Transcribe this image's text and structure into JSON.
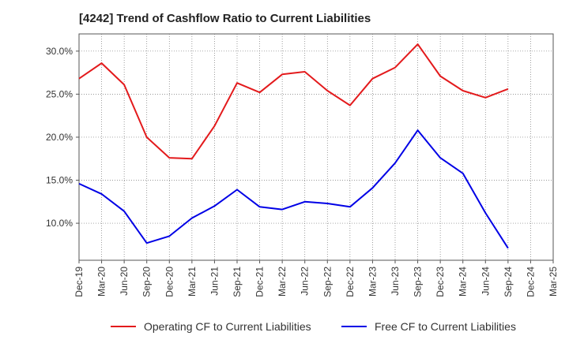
{
  "chart_data": {
    "type": "line",
    "title": "[4242]  Trend of Cashflow Ratio to Current Liabilities",
    "xlabel": "",
    "ylabel": "",
    "categories": [
      "Dec-19",
      "Mar-20",
      "Jun-20",
      "Sep-20",
      "Dec-20",
      "Mar-21",
      "Jun-21",
      "Sep-21",
      "Dec-21",
      "Mar-22",
      "Jun-22",
      "Sep-22",
      "Dec-22",
      "Mar-23",
      "Jun-23",
      "Sep-23",
      "Dec-23",
      "Mar-24",
      "Jun-24",
      "Sep-24",
      "Dec-24",
      "Mar-25"
    ],
    "ylim": [
      5.7,
      32.0
    ],
    "yticks": [
      10.0,
      15.0,
      20.0,
      25.0,
      30.0
    ],
    "ytick_labels": [
      "10.0%",
      "15.0%",
      "20.0%",
      "25.0%",
      "30.0%"
    ],
    "grid": true,
    "legend_position": "bottom",
    "series": [
      {
        "name": "Operating CF to Current Liabilities",
        "color": "#e31a1c",
        "values": [
          26.8,
          28.6,
          26.1,
          20.0,
          17.6,
          17.5,
          21.3,
          26.3,
          25.2,
          27.3,
          27.6,
          25.4,
          23.7,
          26.8,
          28.1,
          30.8,
          27.1,
          25.4,
          24.6,
          25.6,
          null,
          null
        ]
      },
      {
        "name": "Free CF to Current Liabilities",
        "color": "#0000e6",
        "values": [
          14.6,
          13.4,
          11.4,
          7.7,
          8.5,
          10.6,
          12.0,
          13.9,
          11.9,
          11.6,
          12.5,
          12.3,
          11.9,
          14.1,
          17.0,
          20.8,
          17.6,
          15.8,
          11.2,
          7.1,
          null,
          null
        ]
      }
    ]
  }
}
